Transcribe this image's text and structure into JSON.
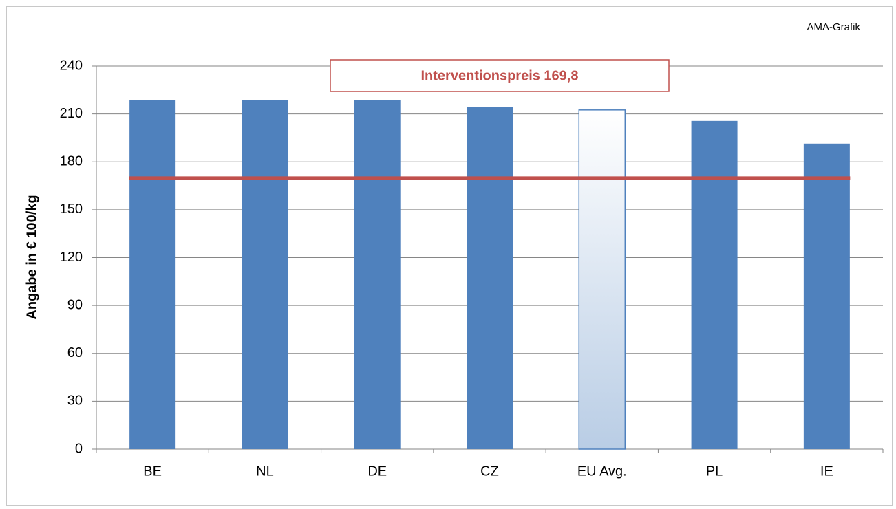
{
  "chart_data": {
    "type": "bar",
    "source": "AMA-Grafik",
    "y_label": "Angabe in € 100/kg",
    "categories": [
      "BE",
      "NL",
      "DE",
      "CZ",
      "EU Avg.",
      "PL",
      "IE"
    ],
    "values": [
      218.5,
      218.5,
      218.5,
      214.2,
      212.5,
      205.6,
      191.4
    ],
    "colors": [
      "#4f81bd",
      "#4f81bd",
      "#4f81bd",
      "#4f81bd",
      "#b9cde5",
      "#4f81bd",
      "#4f81bd"
    ],
    "bar_styles": [
      "solid",
      "solid",
      "solid",
      "solid",
      "gradient",
      "solid",
      "solid"
    ],
    "reference_line": {
      "value": 169.8,
      "label": "Interventionspreis 169,8",
      "color": "#c0504d"
    },
    "ylim": [
      0,
      240
    ],
    "yticks": [
      0,
      30,
      60,
      90,
      120,
      150,
      180,
      210,
      240
    ],
    "grid": true
  }
}
